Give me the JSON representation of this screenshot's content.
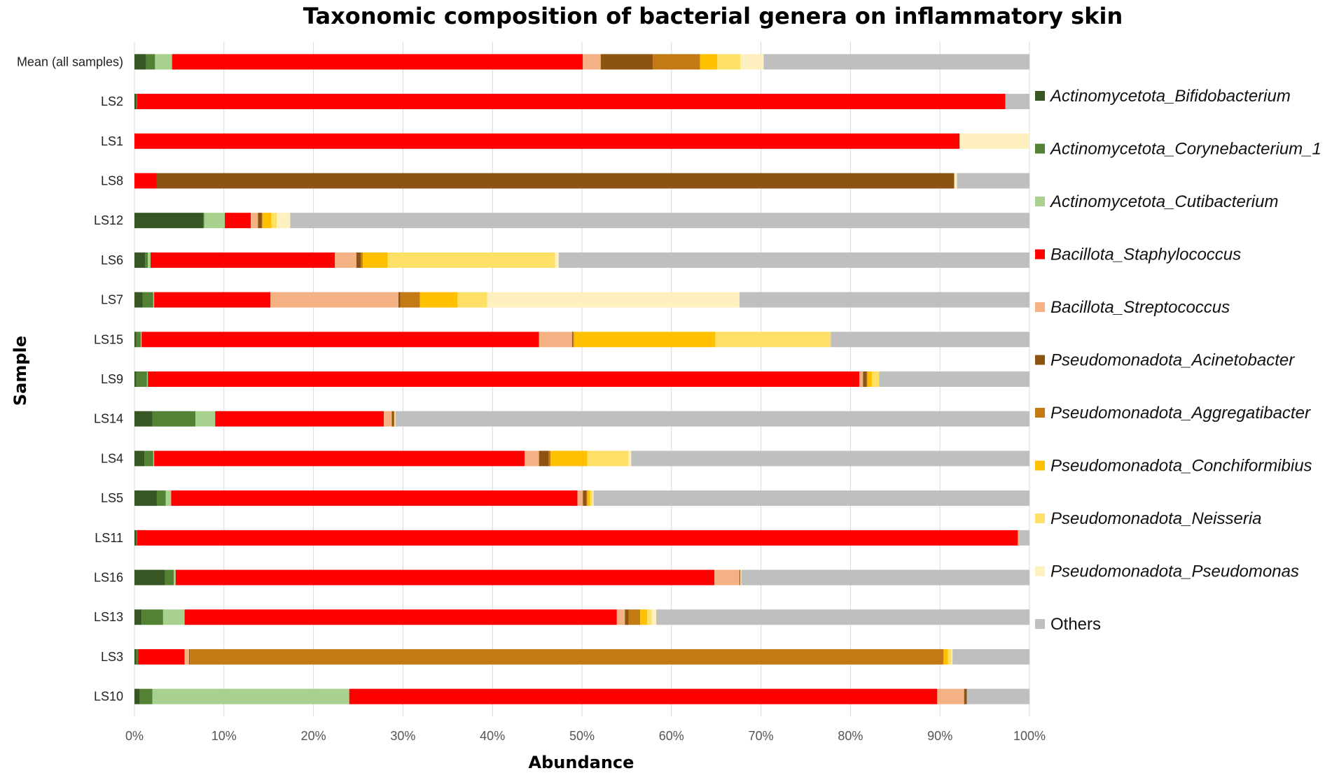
{
  "chart_data": {
    "type": "bar",
    "orientation": "horizontal-stacked-100",
    "title": "Taxonomic composition of bacterial genera on inflammatory skin",
    "xlabel": "Abundance",
    "ylabel": "Sample",
    "xlim": [
      0,
      100
    ],
    "x_ticks": [
      "0%",
      "10%",
      "20%",
      "30%",
      "40%",
      "50%",
      "60%",
      "70%",
      "80%",
      "90%",
      "100%"
    ],
    "grid": true,
    "legend_position": "right",
    "categories": [
      "Mean (all samples)",
      "LS2",
      "LS1",
      "LS8",
      "LS12",
      "LS6",
      "LS7",
      "LS15",
      "LS9",
      "LS14",
      "LS4",
      "LS5",
      "LS11",
      "LS16",
      "LS13",
      "LS3",
      "LS10"
    ],
    "series": [
      {
        "name": "Actinomycetota_Bifidobacterium",
        "color": "#375623",
        "italic": true,
        "values": [
          1.3,
          0.2,
          0.0,
          0.0,
          7.7,
          1.2,
          0.9,
          0.2,
          0.2,
          2.0,
          1.1,
          2.5,
          0.2,
          3.4,
          0.8,
          0.2,
          0.6
        ]
      },
      {
        "name": "Actinomycetota_Corynebacterium_1",
        "color": "#548235",
        "italic": true,
        "values": [
          1.0,
          0.1,
          0.0,
          0.0,
          0.1,
          0.3,
          1.2,
          0.5,
          1.2,
          4.8,
          1.0,
          1.0,
          0.1,
          1.0,
          2.4,
          0.2,
          1.4
        ]
      },
      {
        "name": "Actinomycetota_Cutibacterium",
        "color": "#a9d18e",
        "italic": true,
        "values": [
          1.9,
          0.0,
          0.0,
          0.0,
          2.3,
          0.3,
          0.1,
          0.1,
          0.1,
          2.2,
          0.1,
          0.6,
          0.0,
          0.2,
          2.4,
          0.0,
          22.0
        ]
      },
      {
        "name": "Bacillota_Staphylococcus",
        "color": "#ff0000",
        "italic": true,
        "values": [
          45.9,
          97.0,
          92.2,
          2.5,
          2.9,
          20.6,
          13.0,
          44.4,
          79.5,
          18.8,
          41.4,
          45.4,
          98.4,
          60.2,
          48.3,
          5.2,
          65.7
        ]
      },
      {
        "name": "Bacillota_Streptococcus",
        "color": "#f4b183",
        "italic": true,
        "values": [
          2.0,
          0.0,
          0.0,
          0.0,
          0.8,
          2.4,
          14.3,
          3.7,
          0.4,
          0.9,
          1.6,
          0.6,
          0.2,
          2.8,
          0.9,
          0.5,
          3.0
        ]
      },
      {
        "name": "Pseudomonadota_Acinetobacter",
        "color": "#8c5410",
        "italic": true,
        "values": [
          5.8,
          0.0,
          0.0,
          89.1,
          0.4,
          0.5,
          0.2,
          0.1,
          0.4,
          0.2,
          1.1,
          0.4,
          0.0,
          0.1,
          0.4,
          0.1,
          0.3
        ]
      },
      {
        "name": "Pseudomonadota_Aggregatibacter",
        "color": "#c47a14",
        "italic": true,
        "values": [
          5.3,
          0.0,
          0.0,
          0.0,
          0.1,
          0.2,
          2.2,
          0.1,
          0.1,
          0.1,
          0.2,
          0.1,
          0.0,
          0.0,
          1.3,
          84.2,
          0.0
        ]
      },
      {
        "name": "Pseudomonadota_Conchiformibius",
        "color": "#ffc000",
        "italic": true,
        "values": [
          1.9,
          0.0,
          0.0,
          0.0,
          1.0,
          2.8,
          4.2,
          15.8,
          0.5,
          0.0,
          4.1,
          0.3,
          0.0,
          0.0,
          0.8,
          0.5,
          0.0
        ]
      },
      {
        "name": "Pseudomonadota_Neisseria",
        "color": "#ffe066",
        "italic": true,
        "values": [
          2.6,
          0.0,
          0.0,
          0.0,
          0.6,
          18.7,
          3.3,
          12.9,
          0.8,
          0.0,
          4.6,
          0.3,
          0.0,
          0.0,
          0.5,
          0.4,
          0.0
        ]
      },
      {
        "name": "Pseudomonadota_Pseudomonas",
        "color": "#fff0c0",
        "italic": true,
        "values": [
          2.6,
          0.0,
          7.8,
          0.3,
          1.5,
          0.4,
          28.2,
          0.0,
          0.0,
          0.1,
          0.3,
          0.1,
          0.0,
          0.1,
          0.5,
          0.1,
          0.0
        ]
      },
      {
        "name": "Others",
        "color": "#bfbfbf",
        "italic": false,
        "values": [
          29.7,
          2.7,
          0.0,
          8.1,
          82.6,
          52.6,
          32.4,
          22.2,
          16.8,
          70.7,
          44.5,
          48.7,
          1.1,
          32.2,
          41.7,
          8.6,
          7.0
        ]
      }
    ]
  }
}
